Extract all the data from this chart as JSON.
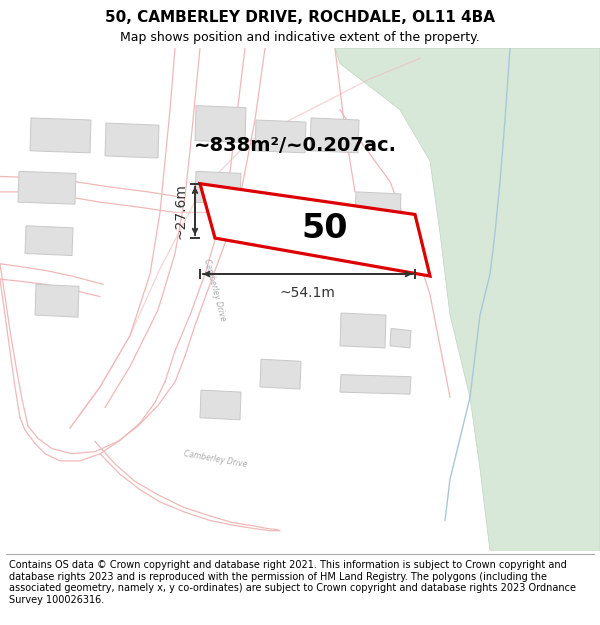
{
  "title_line1": "50, CAMBERLEY DRIVE, ROCHDALE, OL11 4BA",
  "title_line2": "Map shows position and indicative extent of the property.",
  "footer_text": "Contains OS data © Crown copyright and database right 2021. This information is subject to Crown copyright and database rights 2023 and is reproduced with the permission of HM Land Registry. The polygons (including the associated geometry, namely x, y co-ordinates) are subject to Crown copyright and database rights 2023 Ordnance Survey 100026316.",
  "property_number": "50",
  "area_label": "~838m²/~0.207ac.",
  "width_label": "~54.1m",
  "height_label": "~27.6m",
  "map_bg": "#ffffff",
  "road_stroke": "#f0b8b8",
  "building_color": "#e0e0e0",
  "building_stroke": "#c8c8c8",
  "plot_fill": "#ffffff",
  "plot_stroke": "#dd0000",
  "green_color": "#d8e8d8",
  "green_stroke": "#c0d4c0",
  "blue_line": "#a8c8d8",
  "dim_color": "#333333",
  "title_fontsize": 11,
  "subtitle_fontsize": 9,
  "footer_fontsize": 7.0,
  "number_fontsize": 24,
  "area_fontsize": 14,
  "dim_fontsize": 10
}
